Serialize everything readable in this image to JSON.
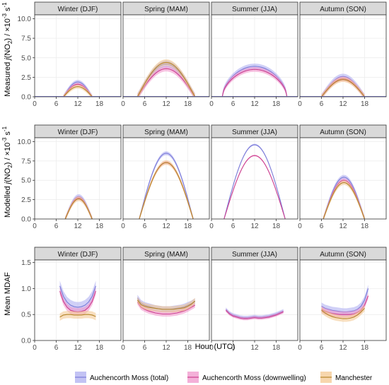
{
  "chart_data": {
    "type": "line",
    "x_label": "Hour (UTC)",
    "x_ticks": [
      0,
      6,
      12,
      18
    ],
    "x_range": [
      0,
      24
    ],
    "facet_columns": [
      "Winter (DJF)",
      "Spring (MAM)",
      "Summer (JJA)",
      "Autumn (SON)"
    ],
    "series_names": [
      "Auchencorth Moss (total)",
      "Auchencorth Moss (downwelling)",
      "Manchester"
    ],
    "colors": {
      "total": "#7b7bd8",
      "downwelling": "#cc3f8f",
      "manchester": "#b5852a",
      "total_band": "#a9a9f0",
      "downwelling_band": "#f08fc8",
      "manchester_band": "#f3c48a",
      "panel_bg": "#ffffff",
      "strip_bg": "#d9d9d9",
      "grid": "#ebebeb"
    },
    "rows": [
      {
        "id": "measured",
        "ylabel_parts": [
          "Measured ",
          "j",
          "(NO",
          "2",
          ") / ×10",
          "-3",
          " s",
          "-1"
        ],
        "y_range": [
          0,
          10.5
        ],
        "y_ticks": [
          "0.0",
          "2.5",
          "5.0",
          "7.5",
          "10.0"
        ],
        "y_tick_values": [
          0,
          2.5,
          5,
          7.5,
          10
        ],
        "panels": [
          {
            "season": "Winter (DJF)",
            "series": [
              {
                "key": "total",
                "start": 8,
                "end": 16,
                "peak": 1.9,
                "shape": "bell",
                "band": 0.25
              },
              {
                "key": "downwelling",
                "start": 8,
                "end": 16,
                "peak": 1.6,
                "shape": "bell",
                "band": 0.2
              },
              {
                "key": "manchester",
                "start": 8,
                "end": 16,
                "peak": 1.3,
                "shape": "bell",
                "band": 0.25
              }
            ]
          },
          {
            "season": "Spring (MAM)",
            "series": [
              {
                "key": "total",
                "start": 4,
                "end": 20,
                "peak": 4.2,
                "shape": "bell",
                "band": 0.45
              },
              {
                "key": "downwelling",
                "start": 4,
                "end": 20,
                "peak": 3.6,
                "shape": "bell",
                "band": 0.35
              },
              {
                "key": "manchester",
                "start": 4,
                "end": 20,
                "peak": 4.4,
                "shape": "bell",
                "band": 0.4
              }
            ]
          },
          {
            "season": "Summer (JJA)",
            "series": [
              {
                "key": "total",
                "start": 3,
                "end": 21,
                "peak": 3.9,
                "shape": "plateau",
                "band": 0.35
              },
              {
                "key": "downwelling",
                "start": 3,
                "end": 21,
                "peak": 3.5,
                "shape": "plateau",
                "band": 0.3
              }
            ]
          },
          {
            "season": "Autumn (SON)",
            "series": [
              {
                "key": "total",
                "start": 6,
                "end": 18,
                "peak": 2.6,
                "shape": "bell",
                "band": 0.35
              },
              {
                "key": "downwelling",
                "start": 6,
                "end": 18,
                "peak": 2.3,
                "shape": "bell",
                "band": 0.3
              },
              {
                "key": "manchester",
                "start": 6,
                "end": 18,
                "peak": 2.2,
                "shape": "bell",
                "band": 0.3
              }
            ]
          }
        ]
      },
      {
        "id": "modelled",
        "ylabel_parts": [
          "Modelled ",
          "j",
          "(NO",
          "2",
          ") / ×10",
          "-3",
          " s",
          "-1"
        ],
        "y_range": [
          0,
          10.5
        ],
        "y_ticks": [
          "0.0",
          "2.5",
          "5.0",
          "7.5",
          "10.0"
        ],
        "y_tick_values": [
          0,
          2.5,
          5,
          7.5,
          10
        ],
        "panels": [
          {
            "season": "Winter (DJF)",
            "series": [
              {
                "key": "total",
                "start": 8.5,
                "end": 16,
                "peak": 2.9,
                "shape": "bell",
                "band": 0.3
              },
              {
                "key": "downwelling",
                "start": 8.5,
                "end": 16,
                "peak": 2.7,
                "shape": "bell",
                "band": 0.25
              },
              {
                "key": "manchester",
                "start": 8.5,
                "end": 16,
                "peak": 2.6,
                "shape": "bell",
                "band": 0.3
              }
            ]
          },
          {
            "season": "Spring (MAM)",
            "series": [
              {
                "key": "total",
                "start": 4.5,
                "end": 19.5,
                "peak": 8.5,
                "shape": "bell",
                "band": 0.25
              },
              {
                "key": "downwelling",
                "start": 4.5,
                "end": 19.5,
                "peak": 7.3,
                "shape": "bell",
                "band": 0.2
              },
              {
                "key": "manchester",
                "start": 4.5,
                "end": 19.5,
                "peak": 7.3,
                "shape": "bell",
                "band": 0.3
              }
            ]
          },
          {
            "season": "Summer (JJA)",
            "series": [
              {
                "key": "total",
                "start": 3.5,
                "end": 20.5,
                "peak": 9.6,
                "shape": "bell",
                "band": 0.12
              },
              {
                "key": "downwelling",
                "start": 3.5,
                "end": 20.5,
                "peak": 8.2,
                "shape": "bell",
                "band": 0.1
              }
            ]
          },
          {
            "season": "Autumn (SON)",
            "series": [
              {
                "key": "total",
                "start": 6.5,
                "end": 18,
                "peak": 5.4,
                "shape": "bell",
                "band": 0.3
              },
              {
                "key": "downwelling",
                "start": 6.5,
                "end": 18,
                "peak": 5.0,
                "shape": "bell",
                "band": 0.25
              },
              {
                "key": "manchester",
                "start": 6.5,
                "end": 18,
                "peak": 4.7,
                "shape": "bell",
                "band": 0.3
              }
            ]
          }
        ]
      },
      {
        "id": "mdaf",
        "ylabel_parts": [
          "Mean MDAF"
        ],
        "y_range": [
          0,
          1.55
        ],
        "y_ticks": [
          "0.0",
          "0.5",
          "1.0",
          "1.5"
        ],
        "y_tick_values": [
          0,
          0.5,
          1.0,
          1.5
        ],
        "panels": [
          {
            "season": "Winter (DJF)",
            "series": [
              {
                "key": "total",
                "x": [
                  7,
                  8,
                  9,
                  10,
                  11,
                  12,
                  13,
                  14,
                  15,
                  16,
                  17
                ],
                "y": [
                  1.05,
                  0.85,
                  0.74,
                  0.68,
                  0.65,
                  0.64,
                  0.65,
                  0.68,
                  0.74,
                  0.85,
                  1.05
                ],
                "band": 0.1
              },
              {
                "key": "downwelling",
                "x": [
                  7,
                  8,
                  9,
                  10,
                  11,
                  12,
                  13,
                  14,
                  15,
                  16,
                  17
                ],
                "y": [
                  0.95,
                  0.75,
                  0.64,
                  0.58,
                  0.56,
                  0.55,
                  0.56,
                  0.58,
                  0.64,
                  0.75,
                  0.95
                ],
                "band": 0.07
              },
              {
                "key": "manchester",
                "x": [
                  7,
                  8,
                  9,
                  10,
                  11,
                  12,
                  13,
                  14,
                  15,
                  16,
                  17
                ],
                "y": [
                  0.45,
                  0.49,
                  0.5,
                  0.5,
                  0.49,
                  0.49,
                  0.49,
                  0.5,
                  0.5,
                  0.49,
                  0.46
                ],
                "band": 0.07
              }
            ]
          },
          {
            "season": "Spring (MAM)",
            "series": [
              {
                "key": "total",
                "x": [
                  4,
                  5,
                  6,
                  7,
                  8,
                  9,
                  10,
                  11,
                  12,
                  13,
                  14,
                  15,
                  16,
                  17,
                  18,
                  19,
                  20
                ],
                "y": [
                  0.82,
                  0.72,
                  0.68,
                  0.66,
                  0.64,
                  0.62,
                  0.61,
                  0.6,
                  0.6,
                  0.6,
                  0.61,
                  0.62,
                  0.63,
                  0.65,
                  0.68,
                  0.71,
                  0.75
                ],
                "band": 0.06
              },
              {
                "key": "downwelling",
                "x": [
                  4,
                  5,
                  6,
                  7,
                  8,
                  9,
                  10,
                  11,
                  12,
                  13,
                  14,
                  15,
                  16,
                  17,
                  18,
                  19,
                  20
                ],
                "y": [
                  0.74,
                  0.64,
                  0.6,
                  0.57,
                  0.55,
                  0.53,
                  0.52,
                  0.51,
                  0.51,
                  0.51,
                  0.52,
                  0.53,
                  0.55,
                  0.57,
                  0.6,
                  0.64,
                  0.68
                ],
                "band": 0.05
              },
              {
                "key": "manchester",
                "x": [
                  4,
                  5,
                  6,
                  7,
                  8,
                  9,
                  10,
                  11,
                  12,
                  13,
                  14,
                  15,
                  16,
                  17,
                  18,
                  19,
                  20
                ],
                "y": [
                  0.78,
                  0.69,
                  0.66,
                  0.64,
                  0.63,
                  0.62,
                  0.61,
                  0.6,
                  0.6,
                  0.6,
                  0.6,
                  0.61,
                  0.62,
                  0.63,
                  0.66,
                  0.7,
                  0.76
                ],
                "band": 0.06
              }
            ]
          },
          {
            "season": "Summer (JJA)",
            "series": [
              {
                "key": "total",
                "x": [
                  4,
                  5,
                  6,
                  7,
                  8,
                  9,
                  10,
                  11,
                  12,
                  13,
                  14,
                  15,
                  16,
                  17,
                  18,
                  19,
                  20
                ],
                "y": [
                  0.6,
                  0.53,
                  0.49,
                  0.47,
                  0.45,
                  0.44,
                  0.44,
                  0.45,
                  0.46,
                  0.45,
                  0.45,
                  0.46,
                  0.47,
                  0.49,
                  0.51,
                  0.54,
                  0.57
                ],
                "band": 0.035
              },
              {
                "key": "downwelling",
                "x": [
                  4,
                  5,
                  6,
                  7,
                  8,
                  9,
                  10,
                  11,
                  12,
                  13,
                  14,
                  15,
                  16,
                  17,
                  18,
                  19,
                  20
                ],
                "y": [
                  0.58,
                  0.51,
                  0.47,
                  0.45,
                  0.43,
                  0.42,
                  0.42,
                  0.43,
                  0.44,
                  0.43,
                  0.43,
                  0.44,
                  0.45,
                  0.47,
                  0.49,
                  0.52,
                  0.55
                ],
                "band": 0.03
              }
            ]
          },
          {
            "season": "Autumn (SON)",
            "series": [
              {
                "key": "total",
                "x": [
                  6,
                  7,
                  8,
                  9,
                  10,
                  11,
                  12,
                  13,
                  14,
                  15,
                  16,
                  17,
                  18,
                  19
                ],
                "y": [
                  0.66,
                  0.62,
                  0.6,
                  0.58,
                  0.57,
                  0.56,
                  0.55,
                  0.55,
                  0.56,
                  0.57,
                  0.6,
                  0.66,
                  0.78,
                  1.0
                ],
                "band": 0.07
              },
              {
                "key": "downwelling",
                "x": [
                  6,
                  7,
                  8,
                  9,
                  10,
                  11,
                  12,
                  13,
                  14,
                  15,
                  16,
                  17,
                  18,
                  19
                ],
                "y": [
                  0.6,
                  0.56,
                  0.54,
                  0.52,
                  0.51,
                  0.5,
                  0.5,
                  0.5,
                  0.5,
                  0.51,
                  0.54,
                  0.58,
                  0.68,
                  0.86
                ],
                "band": 0.06
              },
              {
                "key": "manchester",
                "x": [
                  6,
                  7,
                  8,
                  9,
                  10,
                  11,
                  12,
                  13,
                  14,
                  15,
                  16,
                  17,
                  18
                ],
                "y": [
                  0.58,
                  0.53,
                  0.49,
                  0.46,
                  0.44,
                  0.43,
                  0.42,
                  0.42,
                  0.43,
                  0.45,
                  0.49,
                  0.55,
                  0.62
                ],
                "band": 0.06
              }
            ]
          }
        ]
      }
    ]
  }
}
